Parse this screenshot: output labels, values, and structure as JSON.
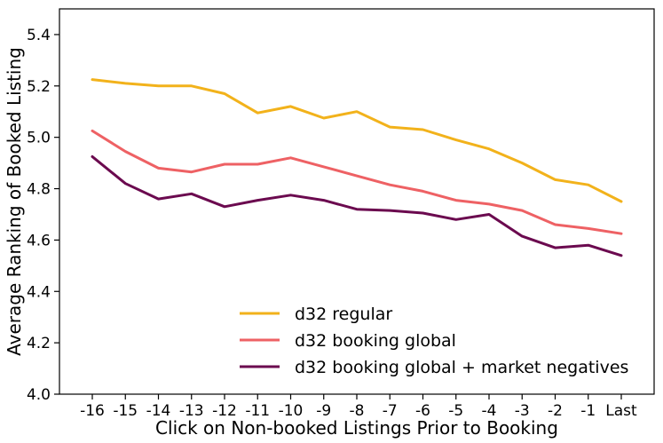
{
  "chart_data": {
    "type": "line",
    "xlabel": "Click on Non-booked Listings Prior to Booking",
    "ylabel": "Average Ranking of Booked Listing",
    "categories": [
      "-16",
      "-15",
      "-14",
      "-13",
      "-12",
      "-11",
      "-10",
      "-9",
      "-8",
      "-7",
      "-6",
      "-5",
      "-4",
      "-3",
      "-2",
      "-1",
      "Last"
    ],
    "ylim": [
      4.0,
      5.5
    ],
    "yticks": [
      "4.0",
      "4.2",
      "4.4",
      "4.6",
      "4.8",
      "5.0",
      "5.2",
      "5.4"
    ],
    "grid": false,
    "legend_position": "bottom-center",
    "series": [
      {
        "name": "d32 regular",
        "color": "#F2B21B",
        "values": [
          5.225,
          5.21,
          5.2,
          5.2,
          5.17,
          5.095,
          5.12,
          5.075,
          5.1,
          5.04,
          5.03,
          4.99,
          4.955,
          4.9,
          4.835,
          4.815,
          4.75
        ]
      },
      {
        "name": "d32 booking global",
        "color": "#EE6164",
        "values": [
          5.025,
          4.945,
          4.88,
          4.865,
          4.895,
          4.895,
          4.92,
          4.885,
          4.85,
          4.815,
          4.79,
          4.755,
          4.74,
          4.715,
          4.66,
          4.645,
          4.625
        ]
      },
      {
        "name": "d32 booking global + market negatives",
        "color": "#6B0A4F",
        "values": [
          4.925,
          4.82,
          4.76,
          4.78,
          4.73,
          4.755,
          4.775,
          4.755,
          4.72,
          4.715,
          4.705,
          4.68,
          4.7,
          4.615,
          4.57,
          4.58,
          4.54
        ]
      }
    ]
  }
}
